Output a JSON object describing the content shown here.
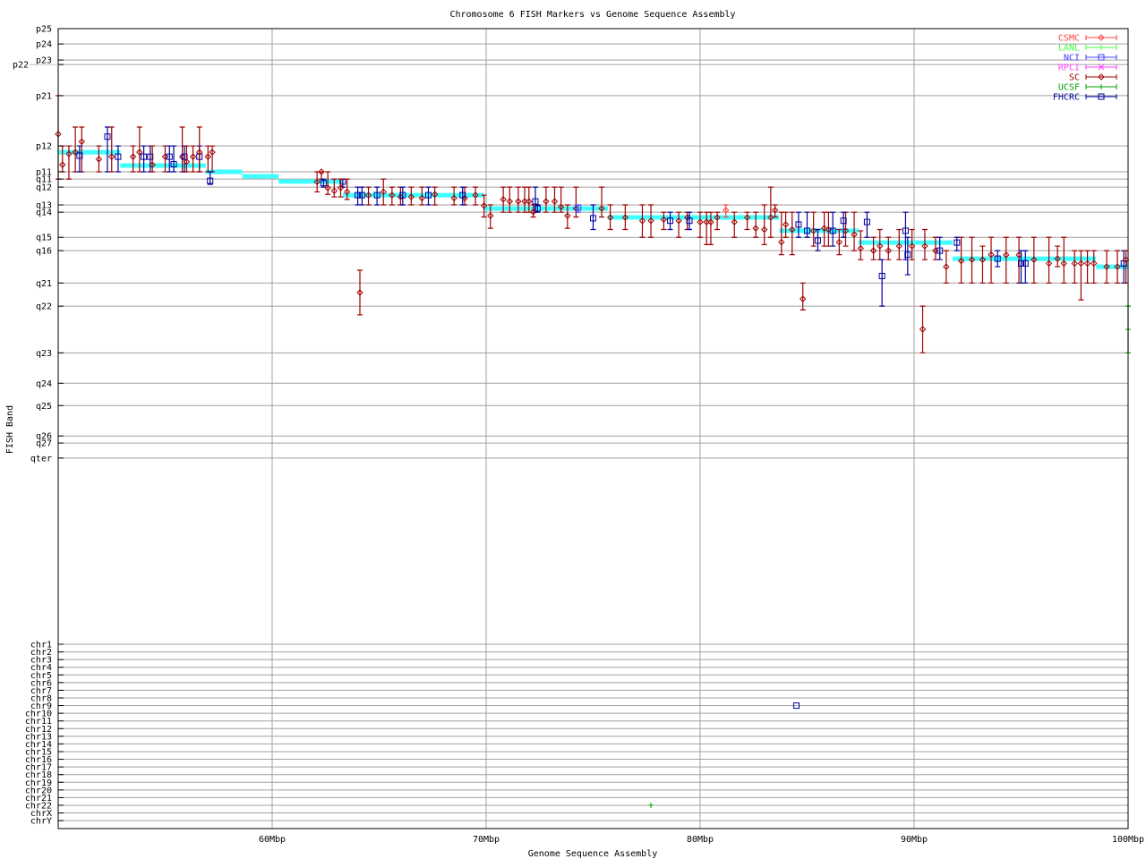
{
  "chart_data": {
    "type": "scatter",
    "title": "Chromosome 6 FISH Markers vs Genome Sequence Assembly",
    "xlabel": "Genome Sequence Assembly",
    "ylabel": "FISH Band",
    "xlim": [
      50,
      100
    ],
    "x_ticks": [
      {
        "value": 60,
        "label": "60Mbp"
      },
      {
        "value": 70,
        "label": "70Mbp"
      },
      {
        "value": 80,
        "label": "80Mbp"
      },
      {
        "value": 90,
        "label": "90Mbp"
      },
      {
        "value": 100,
        "label": "100Mbp"
      }
    ],
    "y_band_ticks": [
      {
        "label": "p25",
        "value": 0
      },
      {
        "label": "p24",
        "value": 6.1
      },
      {
        "label": "p23",
        "value": 12.5
      },
      {
        "label": "p22",
        "value": 14.3
      },
      {
        "label": "p21",
        "value": 26.7
      },
      {
        "label": "p12",
        "value": 46.7
      },
      {
        "label": "p11",
        "value": 57.0
      },
      {
        "label": "q11",
        "value": 59.9
      },
      {
        "label": "q12",
        "value": 63.1
      },
      {
        "label": "q13",
        "value": 70.2
      },
      {
        "label": "q14",
        "value": 73.1
      },
      {
        "label": "q15",
        "value": 83.1
      },
      {
        "label": "q16",
        "value": 88.4
      },
      {
        "label": "q21",
        "value": 101.3
      },
      {
        "label": "q22",
        "value": 110.5
      },
      {
        "label": "q23",
        "value": 129.1
      },
      {
        "label": "q24",
        "value": 141.2
      },
      {
        "label": "q25",
        "value": 150.1
      },
      {
        "label": "q26",
        "value": 162.2
      },
      {
        "label": "q27",
        "value": 165.0
      },
      {
        "label": "qter",
        "value": 171.0
      }
    ],
    "y_chr_ticks": [
      "chr1",
      "chr2",
      "chr3",
      "chr4",
      "chr5",
      "chr6",
      "chr7",
      "chr8",
      "chr9",
      "chr10",
      "chr11",
      "chr12",
      "chr13",
      "chr14",
      "chr15",
      "chr16",
      "chr17",
      "chr18",
      "chr19",
      "chr20",
      "chr21",
      "chr22",
      "chrX",
      "chrY"
    ],
    "grid": true,
    "legend_placement": "top-right",
    "legend": [
      {
        "name": "CSMC",
        "color": "#ff4040",
        "marker": "diamond"
      },
      {
        "name": "LANL",
        "color": "#40ff40",
        "marker": "plus"
      },
      {
        "name": "NCI",
        "color": "#4040ff",
        "marker": "square"
      },
      {
        "name": "RPCI",
        "color": "#ff40ff",
        "marker": "cross"
      },
      {
        "name": "SC",
        "color": "#a00000",
        "marker": "diamond"
      },
      {
        "name": "UCSF",
        "color": "#00a000",
        "marker": "plus"
      },
      {
        "name": "FHCRC",
        "color": "#0000a0",
        "marker": "square"
      }
    ],
    "sequence_assembly_color": "#40ffff",
    "sequence_assembly": [
      [
        50.0,
        52.9,
        49.2
      ],
      [
        52.9,
        56.9,
        54.5
      ],
      [
        56.9,
        58.6,
        57.0
      ],
      [
        58.6,
        60.3,
        58.8
      ],
      [
        60.3,
        63.3,
        60.9
      ],
      [
        63.3,
        69.9,
        66.3
      ],
      [
        69.9,
        75.7,
        71.6
      ],
      [
        75.7,
        83.7,
        75.2
      ],
      [
        83.7,
        87.4,
        80.5
      ],
      [
        87.4,
        91.8,
        85.2
      ],
      [
        91.8,
        98.5,
        91.6
      ],
      [
        98.5,
        100.0,
        94.8
      ]
    ],
    "marker_fields": [
      "lab",
      "x",
      "y",
      "y_low",
      "y_high"
    ],
    "markers": [
      [
        "SC",
        50.0,
        42.0,
        26.7,
        59.9
      ],
      [
        "SC",
        50.2,
        54.2,
        46.7,
        57.0
      ],
      [
        "SC",
        50.5,
        49.9,
        46.7,
        59.9
      ],
      [
        "SC",
        50.8,
        49.2,
        39.2,
        57.0
      ],
      [
        "SC",
        51.1,
        45.0,
        39.2,
        57.0
      ],
      [
        "FHCRC",
        51.0,
        50.6,
        46.7,
        57.0
      ],
      [
        "SC",
        51.9,
        52.0,
        46.7,
        57.0
      ],
      [
        "FHCRC",
        52.3,
        43.0,
        39.2,
        57.0
      ],
      [
        "SC",
        52.5,
        51.0,
        39.2,
        57.0
      ],
      [
        "FHCRC",
        52.8,
        51.0,
        46.7,
        57.0
      ],
      [
        "SC",
        53.5,
        51.0,
        46.7,
        57.0
      ],
      [
        "SC",
        53.8,
        49.2,
        39.2,
        57.0
      ],
      [
        "FHCRC",
        54.0,
        51.0,
        46.7,
        57.0
      ],
      [
        "FHCRC",
        54.3,
        51.0,
        46.7,
        57.0
      ],
      [
        "SC",
        54.4,
        54.2,
        46.7,
        57.0
      ],
      [
        "SC",
        55.0,
        51.0,
        46.7,
        57.0
      ],
      [
        "FHCRC",
        55.2,
        51.0,
        46.7,
        57.0
      ],
      [
        "FHCRC",
        55.4,
        54.0,
        46.7,
        57.0
      ],
      [
        "SC",
        55.8,
        51.0,
        39.2,
        57.0
      ],
      [
        "FHCRC",
        55.9,
        51.0,
        46.7,
        57.0
      ],
      [
        "SC",
        56.0,
        53.0,
        46.7,
        57.0
      ],
      [
        "SC",
        56.3,
        51.0,
        46.7,
        57.0
      ],
      [
        "FHCRC",
        56.6,
        51.0,
        46.7,
        57.0
      ],
      [
        "SC",
        56.6,
        49.2,
        39.2,
        57.0
      ],
      [
        "SC",
        57.0,
        51.0,
        46.7,
        57.0
      ],
      [
        "SC",
        57.2,
        49.2,
        46.7,
        57.0
      ],
      [
        "FHCRC",
        57.1,
        60.6,
        57.0,
        62.0
      ],
      [
        "SC",
        62.1,
        61.0,
        57.0,
        65.0
      ],
      [
        "SC",
        62.3,
        57.0,
        57.0,
        59.9
      ],
      [
        "FHCRC",
        62.4,
        61.5,
        59.9,
        63.1
      ],
      [
        "SC",
        62.6,
        63.4,
        57.0,
        66.0
      ],
      [
        "SC",
        62.9,
        64.6,
        59.9,
        67.0
      ],
      [
        "FHCRC",
        63.3,
        60.9,
        59.9,
        63.1
      ],
      [
        "SC",
        63.2,
        63.4,
        59.9,
        67.0
      ],
      [
        "SC",
        63.5,
        65.0,
        59.9,
        68.0
      ],
      [
        "FHCRC",
        64.0,
        66.3,
        63.1,
        70.2
      ],
      [
        "FHCRC",
        64.2,
        66.3,
        63.1,
        70.2
      ],
      [
        "SC",
        64.1,
        105.1,
        96.2,
        114.0
      ],
      [
        "SC",
        64.5,
        66.3,
        63.1,
        70.2
      ],
      [
        "FHCRC",
        64.9,
        66.3,
        63.1,
        70.2
      ],
      [
        "SC",
        65.2,
        65.0,
        59.9,
        70.2
      ],
      [
        "SC",
        65.6,
        66.3,
        63.1,
        70.2
      ],
      [
        "SC",
        66.0,
        67.0,
        63.1,
        70.2
      ],
      [
        "FHCRC",
        66.1,
        66.3,
        63.1,
        70.2
      ],
      [
        "SC",
        66.5,
        67.0,
        63.1,
        70.2
      ],
      [
        "SC",
        67.0,
        67.5,
        63.1,
        70.2
      ],
      [
        "FHCRC",
        67.3,
        66.3,
        63.1,
        70.2
      ],
      [
        "SC",
        67.6,
        66.0,
        63.1,
        70.2
      ],
      [
        "SC",
        68.5,
        67.5,
        63.1,
        70.2
      ],
      [
        "SC",
        69.0,
        67.5,
        63.1,
        70.2
      ],
      [
        "FHCRC",
        68.9,
        66.3,
        63.1,
        70.2
      ],
      [
        "SC",
        69.5,
        66.3,
        63.1,
        70.2
      ],
      [
        "SC",
        69.9,
        70.5,
        66.3,
        75.0
      ],
      [
        "SC",
        70.2,
        74.5,
        70.2,
        79.5
      ],
      [
        "SC",
        70.8,
        68.0,
        63.1,
        73.1
      ],
      [
        "SC",
        71.1,
        68.8,
        63.1,
        73.1
      ],
      [
        "SC",
        71.5,
        68.8,
        63.1,
        73.1
      ],
      [
        "SC",
        71.8,
        68.8,
        63.1,
        73.1
      ],
      [
        "SC",
        72.0,
        68.8,
        63.1,
        73.1
      ],
      [
        "FHCRC",
        72.3,
        68.8,
        63.1,
        73.1
      ],
      [
        "FHCRC",
        72.4,
        71.6,
        70.2,
        73.1
      ],
      [
        "SC",
        72.2,
        73.0,
        70.2,
        75.0
      ],
      [
        "SC",
        72.8,
        68.8,
        63.1,
        73.1
      ],
      [
        "SC",
        73.2,
        68.8,
        63.1,
        73.1
      ],
      [
        "SC",
        73.5,
        71.0,
        63.1,
        73.1
      ],
      [
        "SC",
        73.8,
        74.5,
        70.2,
        79.5
      ],
      [
        "SC",
        74.2,
        71.6,
        63.1,
        75.0
      ],
      [
        "NCI",
        74.3,
        71.3,
        70.2,
        73.1
      ],
      [
        "FHCRC",
        75.0,
        75.5,
        70.2,
        80.0
      ],
      [
        "SC",
        75.4,
        71.6,
        63.1,
        75.0
      ],
      [
        "SC",
        75.8,
        75.2,
        70.2,
        80.0
      ],
      [
        "SC",
        76.5,
        75.2,
        70.2,
        80.0
      ],
      [
        "SC",
        77.3,
        76.5,
        70.2,
        83.1
      ],
      [
        "SC",
        77.7,
        76.5,
        70.2,
        83.1
      ],
      [
        "SC",
        78.3,
        76.0,
        73.1,
        80.0
      ],
      [
        "SC",
        79.0,
        76.5,
        73.1,
        83.1
      ],
      [
        "FHCRC",
        78.6,
        76.5,
        73.1,
        80.0
      ],
      [
        "SC",
        79.4,
        75.2,
        73.1,
        80.0
      ],
      [
        "FHCRC",
        79.5,
        76.5,
        73.1,
        80.0
      ],
      [
        "SC",
        80.0,
        77.0,
        73.1,
        83.1
      ],
      [
        "SC",
        80.3,
        77.0,
        73.1,
        86.0
      ],
      [
        "SC",
        80.5,
        77.0,
        73.1,
        86.0
      ],
      [
        "SC",
        80.8,
        75.2,
        73.1,
        80.0
      ],
      [
        "CSMC",
        81.2,
        72.3,
        70.2,
        75.0
      ],
      [
        "SC",
        81.6,
        77.0,
        73.1,
        83.1
      ],
      [
        "SC",
        82.2,
        75.2,
        73.1,
        80.0
      ],
      [
        "SC",
        82.6,
        79.5,
        73.1,
        83.1
      ],
      [
        "SC",
        83.0,
        80.0,
        70.2,
        86.0
      ],
      [
        "SC",
        83.3,
        75.2,
        63.1,
        83.1
      ],
      [
        "SC",
        83.5,
        72.3,
        70.2,
        75.0
      ],
      [
        "SC",
        83.8,
        85.0,
        73.1,
        90.0
      ],
      [
        "SC",
        84.0,
        78.0,
        73.1,
        83.1
      ],
      [
        "SC",
        84.3,
        80.0,
        73.1,
        90.0
      ],
      [
        "FHCRC",
        84.6,
        78.0,
        73.1,
        83.1
      ],
      [
        "SC",
        84.8,
        107.6,
        101.3,
        112.0
      ],
      [
        "FHCRC",
        85.0,
        80.5,
        73.1,
        83.1
      ],
      [
        "SC",
        85.3,
        80.5,
        73.1,
        86.6
      ],
      [
        "SC",
        85.8,
        79.5,
        73.1,
        86.6
      ],
      [
        "FHCRC",
        85.5,
        84.4,
        80.0,
        88.4
      ],
      [
        "SC",
        86.0,
        80.0,
        73.1,
        86.6
      ],
      [
        "FHCRC",
        86.2,
        80.5,
        73.1,
        86.6
      ],
      [
        "SC",
        86.5,
        85.0,
        80.0,
        90.0
      ],
      [
        "SC",
        86.8,
        80.5,
        73.1,
        86.6
      ],
      [
        "FHCRC",
        86.7,
        76.5,
        73.1,
        83.1
      ],
      [
        "SC",
        87.2,
        82.0,
        73.1,
        88.4
      ],
      [
        "SC",
        87.5,
        87.5,
        80.5,
        92.0
      ],
      [
        "FHCRC",
        87.8,
        77.0,
        73.1,
        83.1
      ],
      [
        "SC",
        88.1,
        88.4,
        83.1,
        92.0
      ],
      [
        "SC",
        88.4,
        86.6,
        80.0,
        92.0
      ],
      [
        "FHCRC",
        88.5,
        98.5,
        92.0,
        110.5
      ],
      [
        "SC",
        88.8,
        88.4,
        83.1,
        92.0
      ],
      [
        "SC",
        89.3,
        86.6,
        80.0,
        92.0
      ],
      [
        "FHCRC",
        89.6,
        80.5,
        73.1,
        92.0
      ],
      [
        "FHCRC",
        89.7,
        90.0,
        83.1,
        98.0
      ],
      [
        "SC",
        89.9,
        86.6,
        80.0,
        92.0
      ],
      [
        "SC",
        90.4,
        119.7,
        110.5,
        129.1
      ],
      [
        "SC",
        90.5,
        86.6,
        80.0,
        92.0
      ],
      [
        "SC",
        91.0,
        88.4,
        83.1,
        92.0
      ],
      [
        "FHCRC",
        91.2,
        88.4,
        83.1,
        92.0
      ],
      [
        "SC",
        91.5,
        94.8,
        88.4,
        101.3
      ],
      [
        "FHCRC",
        92.0,
        85.2,
        83.1,
        88.4
      ],
      [
        "SC",
        92.2,
        92.5,
        83.1,
        101.3
      ],
      [
        "SC",
        92.7,
        92.0,
        83.1,
        101.3
      ],
      [
        "SC",
        93.2,
        92.0,
        86.6,
        101.3
      ],
      [
        "SC",
        93.6,
        90.0,
        83.1,
        101.3
      ],
      [
        "FHCRC",
        93.9,
        91.6,
        88.4,
        94.8
      ],
      [
        "SC",
        94.3,
        90.1,
        83.1,
        101.3
      ],
      [
        "SC",
        94.9,
        90.1,
        83.1,
        101.3
      ],
      [
        "FHCRC",
        95.0,
        93.5,
        88.4,
        101.3
      ],
      [
        "FHCRC",
        95.2,
        93.5,
        88.4,
        101.3
      ],
      [
        "SC",
        95.6,
        92.0,
        83.1,
        101.3
      ],
      [
        "SC",
        96.3,
        93.5,
        83.1,
        101.3
      ],
      [
        "SC",
        96.7,
        91.6,
        86.6,
        94.8
      ],
      [
        "SC",
        97.0,
        93.5,
        83.1,
        101.3
      ],
      [
        "SC",
        97.5,
        93.5,
        88.4,
        101.3
      ],
      [
        "SC",
        97.8,
        93.5,
        88.4,
        108.0
      ],
      [
        "SC",
        98.1,
        93.5,
        88.4,
        101.3
      ],
      [
        "SC",
        98.4,
        93.5,
        88.4,
        101.3
      ],
      [
        "SC",
        99.0,
        94.8,
        88.4,
        101.3
      ],
      [
        "SC",
        99.5,
        94.8,
        88.4,
        101.3
      ],
      [
        "FHCRC",
        99.8,
        93.5,
        88.4,
        101.3
      ],
      [
        "SC",
        99.9,
        92.0,
        88.4,
        101.3
      ],
      [
        "UCSF",
        100.0,
        119.7,
        110.5,
        129.1
      ]
    ],
    "off_chromosome_markers": [
      {
        "lab": "FHCRC",
        "x": 84.5,
        "chr": "chr9"
      },
      {
        "lab": "UCSF",
        "x": 77.7,
        "chr": "chr22"
      }
    ]
  }
}
